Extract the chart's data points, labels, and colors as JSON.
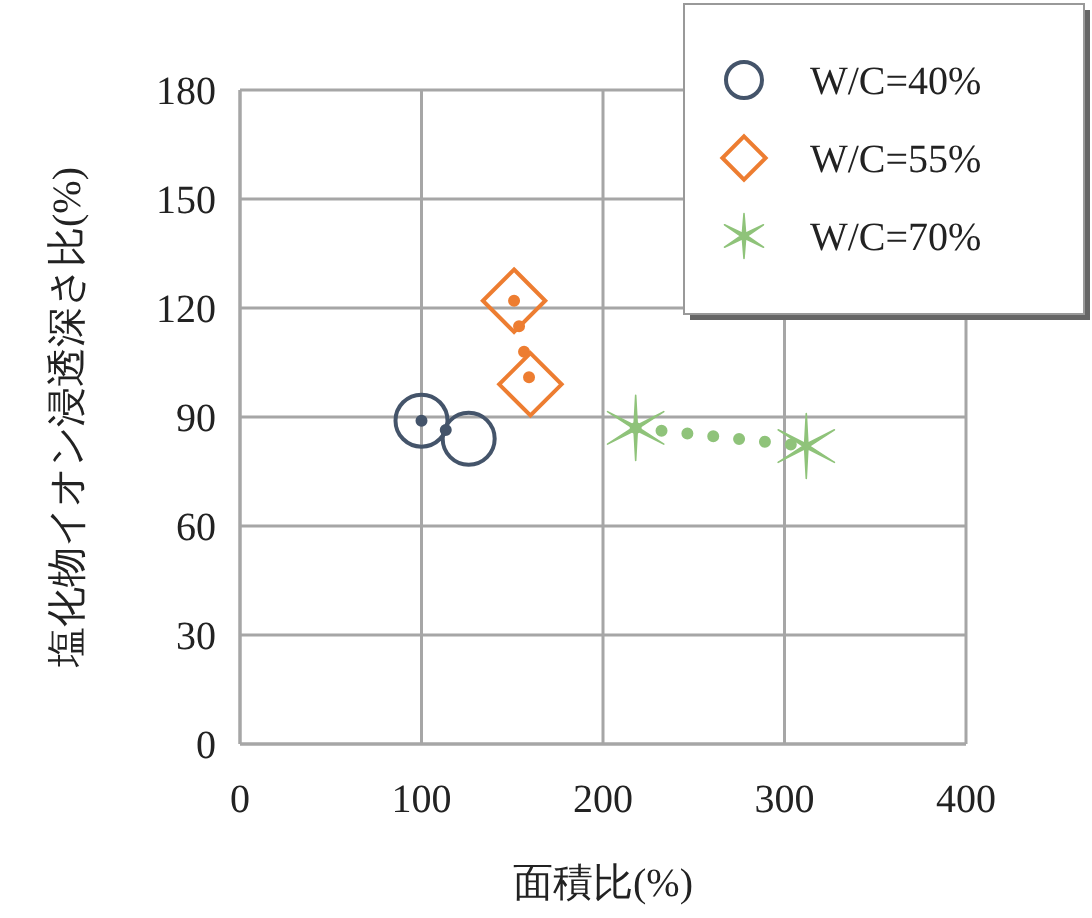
{
  "chart_data": {
    "type": "line",
    "xlabel": "面積比(%)",
    "ylabel": "塩化物イオン浸透深さ比(%)",
    "xlim": [
      0,
      400
    ],
    "xticks": [
      0,
      100,
      200,
      300,
      400
    ],
    "ylim": [
      0,
      180
    ],
    "yticks": [
      0,
      30,
      60,
      90,
      120,
      150,
      180
    ],
    "grid": true,
    "legend": "top right",
    "line_style": "dotted",
    "series": [
      {
        "name": "W/C=40%",
        "color": "#44546a",
        "marker": "circle",
        "x": [
          100,
          126
        ],
        "values": [
          89,
          84
        ]
      },
      {
        "name": "W/C=55%",
        "color": "#ed7d31",
        "marker": "diamond",
        "x": [
          151,
          160
        ],
        "values": [
          122,
          99
        ]
      },
      {
        "name": "W/C=70%",
        "color": "#8fc37a",
        "marker": "cross",
        "x": [
          218,
          312
        ],
        "values": [
          87,
          82
        ]
      }
    ]
  }
}
